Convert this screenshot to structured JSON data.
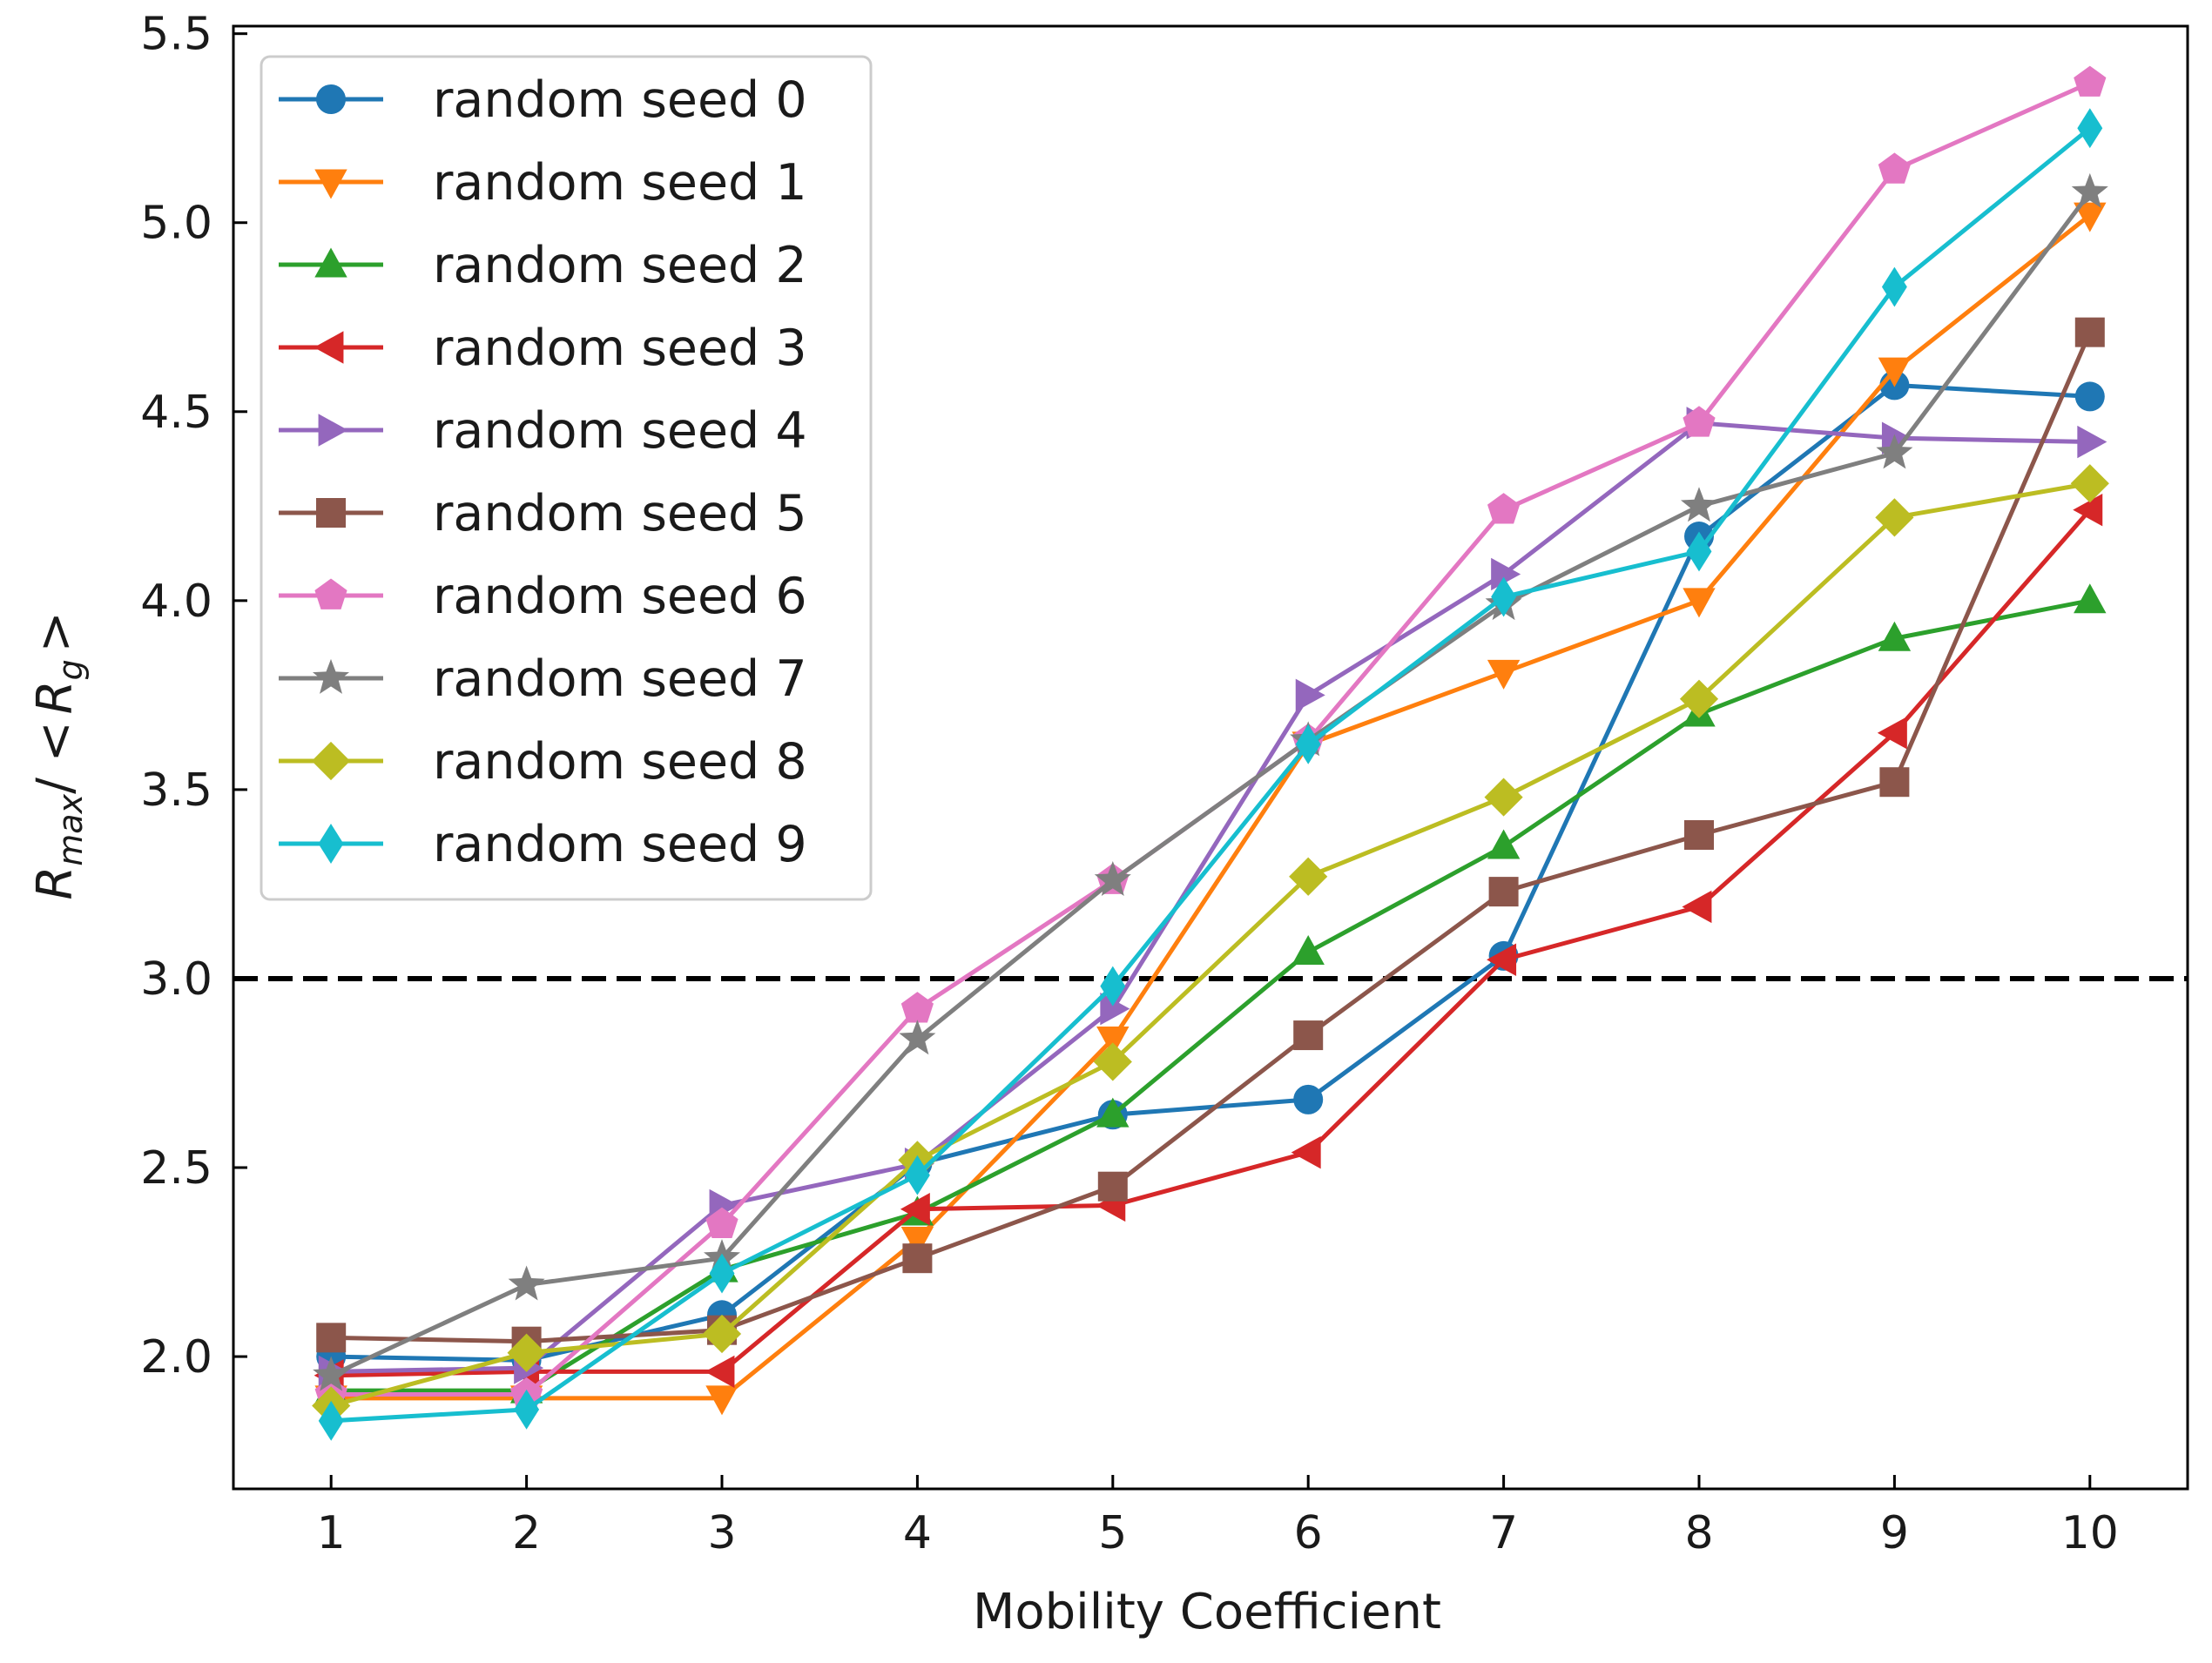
{
  "chart_data": {
    "type": "line",
    "xlabel": "Mobility Coefficient",
    "ylabel": "R_max / < R_g >",
    "ylabel_parts": {
      "r": "R",
      "max": "max",
      "sep": "/ <",
      "rg": "R",
      "g": "g",
      "close": ">"
    },
    "x": [
      1,
      2,
      3,
      4,
      5,
      6,
      7,
      8,
      9,
      10
    ],
    "xlim": [
      0.5,
      10.5
    ],
    "ylim": [
      1.65,
      5.52
    ],
    "xticks": [
      "1",
      "2",
      "3",
      "4",
      "5",
      "6",
      "7",
      "8",
      "9",
      "10"
    ],
    "yticks": [
      "2.0",
      "2.5",
      "3.0",
      "3.5",
      "4.0",
      "4.5",
      "5.0",
      "5.5"
    ],
    "ytick_values": [
      2.0,
      2.5,
      3.0,
      3.5,
      4.0,
      4.5,
      5.0,
      5.5
    ],
    "reference_line": {
      "y": 3.0,
      "style": "dashed",
      "color": "#000000"
    },
    "legend_position": "top-left",
    "series": [
      {
        "name": "random seed 0",
        "color": "#1f77b4",
        "marker": "circle",
        "values": [
          2.0,
          1.99,
          2.11,
          2.51,
          2.64,
          2.68,
          3.06,
          4.17,
          4.57,
          4.54
        ]
      },
      {
        "name": "random seed 1",
        "color": "#ff7f0e",
        "marker": "triangle-down",
        "values": [
          1.89,
          1.89,
          1.89,
          2.31,
          2.84,
          3.62,
          3.81,
          4.0,
          4.61,
          5.02
        ]
      },
      {
        "name": "random seed 2",
        "color": "#2ca02c",
        "marker": "triangle-up",
        "values": [
          1.91,
          1.91,
          2.23,
          2.38,
          2.64,
          3.07,
          3.35,
          3.7,
          3.9,
          4.0
        ]
      },
      {
        "name": "random seed 3",
        "color": "#d62728",
        "marker": "triangle-left",
        "values": [
          1.95,
          1.96,
          1.96,
          2.39,
          2.4,
          2.54,
          3.05,
          3.19,
          3.65,
          4.24
        ]
      },
      {
        "name": "random seed 4",
        "color": "#9467bd",
        "marker": "triangle-right",
        "values": [
          1.96,
          1.97,
          2.4,
          2.51,
          2.92,
          3.75,
          4.07,
          4.47,
          4.43,
          4.42
        ]
      },
      {
        "name": "random seed 5",
        "color": "#8c564b",
        "marker": "square",
        "values": [
          2.05,
          2.04,
          2.07,
          2.26,
          2.45,
          2.85,
          3.23,
          3.38,
          3.52,
          4.71
        ]
      },
      {
        "name": "random seed 6",
        "color": "#e377c2",
        "marker": "pentagon",
        "values": [
          1.9,
          1.9,
          2.35,
          2.92,
          3.26,
          3.63,
          4.24,
          4.47,
          5.14,
          5.37
        ]
      },
      {
        "name": "random seed 7",
        "color": "#7f7f7f",
        "marker": "star",
        "values": [
          1.95,
          2.19,
          2.26,
          2.84,
          3.26,
          3.63,
          3.99,
          4.25,
          4.39,
          5.08
        ]
      },
      {
        "name": "random seed 8",
        "color": "#bcbd22",
        "marker": "diamond",
        "values": [
          1.87,
          2.01,
          2.06,
          2.52,
          2.78,
          3.27,
          3.48,
          3.74,
          4.22,
          4.31
        ]
      },
      {
        "name": "random seed 9",
        "color": "#17becf",
        "marker": "thin-diamond",
        "values": [
          1.83,
          1.86,
          2.22,
          2.48,
          2.98,
          3.62,
          4.01,
          4.13,
          4.83,
          5.25
        ]
      }
    ]
  }
}
